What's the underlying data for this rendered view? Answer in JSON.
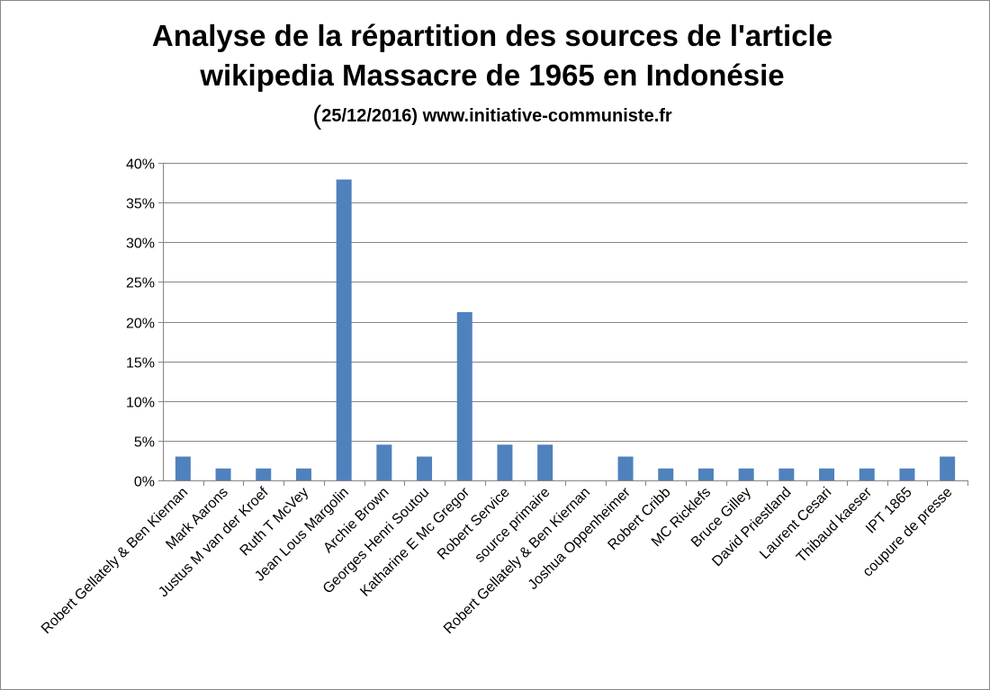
{
  "chart_data": {
    "type": "bar",
    "title_line1": "Analyse de la répartition des sources de l'article",
    "title_line2": "wikipedia Massacre de 1965 en Indonésie",
    "subtitle_paren": "(",
    "subtitle": "25/12/2016) www.initiative-communiste.fr",
    "categories": [
      "Robert Gellately & Ben Kiernan",
      "Mark Aarons",
      "Justus M van der Kroef",
      "Ruth T McVey",
      "Jean Lous Margolin",
      "Archie Brown",
      "Georges Henri Soutou",
      "Katharine E Mc Gregor",
      "Robert Service",
      "source primaire",
      "Robert Gellately & Ben Kiernan",
      "Joshua Oppenheimer",
      "Robert Cribb",
      "MC Ricklefs",
      "Bruce Gilley",
      "David Priestland",
      "Laurent Cesari",
      "Thibaud kaeser",
      "IPT 1865",
      "coupure de presse"
    ],
    "values": [
      3.0,
      1.5,
      1.5,
      1.5,
      37.9,
      4.5,
      3.0,
      21.2,
      4.5,
      4.5,
      0,
      3.0,
      1.5,
      1.5,
      1.5,
      1.5,
      1.5,
      1.5,
      1.5,
      3.0
    ],
    "ylim": [
      0,
      40
    ],
    "yticks": [
      0,
      5,
      10,
      15,
      20,
      25,
      30,
      35,
      40
    ],
    "ytick_labels": [
      "0%",
      "5%",
      "10%",
      "15%",
      "20%",
      "25%",
      "30%",
      "35%",
      "40%"
    ],
    "grid": true,
    "bar_color": "#4f81bd",
    "grid_color": "#868686"
  }
}
